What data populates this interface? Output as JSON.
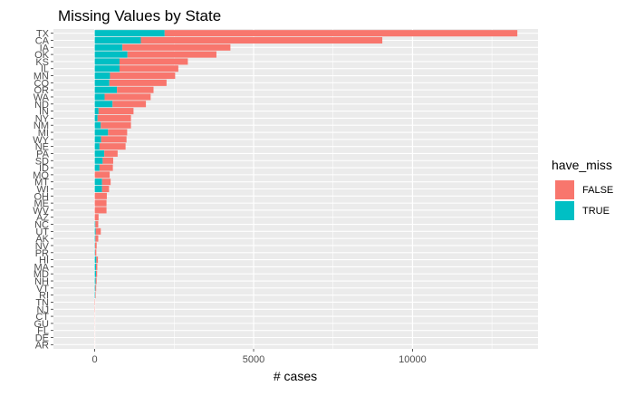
{
  "chart_data": {
    "type": "bar",
    "orientation": "horizontal",
    "stacked": true,
    "title": "Missing Values by State",
    "xlabel": "# cases",
    "ylabel": "",
    "xlim": [
      -1300,
      13950
    ],
    "xticks": [
      0,
      5000,
      10000
    ],
    "xtick_labels": [
      "0",
      "5000",
      "10000"
    ],
    "grid": true,
    "legend_position": "right",
    "legend_title": "have_miss",
    "categories": [
      "TX",
      "CA",
      "IA",
      "OK",
      "KS",
      "IL",
      "MN",
      "CO",
      "OR",
      "WA",
      "ND",
      "IN",
      "NY",
      "NM",
      "MI",
      "WY",
      "NE",
      "PA",
      "SD",
      "ID",
      "MO",
      "MT",
      "WI",
      "OH",
      "ME",
      "WV",
      "AZ",
      "NC",
      "UT",
      "AK",
      "NV",
      "PR",
      "HI",
      "MA",
      "MD",
      "NH",
      "VT",
      "RI",
      "TN",
      "NJ",
      "CT",
      "GU",
      "FL",
      "DE",
      "AR"
    ],
    "series": [
      {
        "name": "FALSE",
        "color": "#F8766D",
        "values": [
          11100,
          7600,
          3400,
          2800,
          2150,
          1850,
          2050,
          1800,
          1150,
          1450,
          1050,
          1100,
          1050,
          950,
          600,
          800,
          820,
          420,
          330,
          420,
          470,
          270,
          220,
          380,
          370,
          370,
          120,
          90,
          160,
          90,
          50,
          40,
          50,
          40,
          35,
          30,
          25,
          15,
          10,
          8,
          5,
          4,
          3,
          3,
          2
        ]
      },
      {
        "name": "TRUE",
        "color": "#00BFC4",
        "values": [
          2200,
          1450,
          870,
          1030,
          780,
          780,
          480,
          460,
          700,
          310,
          560,
          120,
          90,
          190,
          420,
          200,
          150,
          300,
          250,
          150,
          0,
          230,
          230,
          0,
          0,
          0,
          0,
          20,
          30,
          20,
          10,
          10,
          50,
          40,
          40,
          30,
          20,
          15,
          0,
          0,
          0,
          0,
          0,
          0,
          0
        ]
      }
    ]
  }
}
